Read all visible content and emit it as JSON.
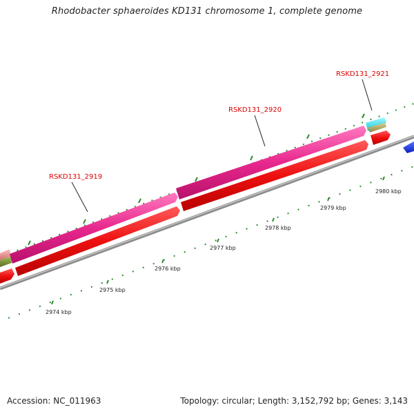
{
  "title": "Rhodobacter sphaeroides KD131 chromosome 1, complete genome",
  "footer": {
    "accession": "Accession: NC_011963",
    "summary": "Topology: circular; Length: 3,152,792 bp; Genes: 3,143"
  },
  "colors": {
    "backbone": "#8c8c8c",
    "cds": "#ee1010",
    "cds_highlight": "#e8288e",
    "tick": "#2e8b2e",
    "label": "#dd0000",
    "cyan_feature": "#30e4f0",
    "olive_feature": "#b0a860",
    "blue_feature": "#1530e6",
    "pink_feature": "#e89090"
  },
  "map": {
    "scale_labels": [
      "2974 kbp",
      "2975 kbp",
      "2976 kbp",
      "2977 kbp",
      "2978 kbp",
      "2979 kbp",
      "2980 kbp"
    ],
    "gene_labels": [
      "RSKD131_2919",
      "RSKD131_2920",
      "RSKD131_2921"
    ]
  }
}
